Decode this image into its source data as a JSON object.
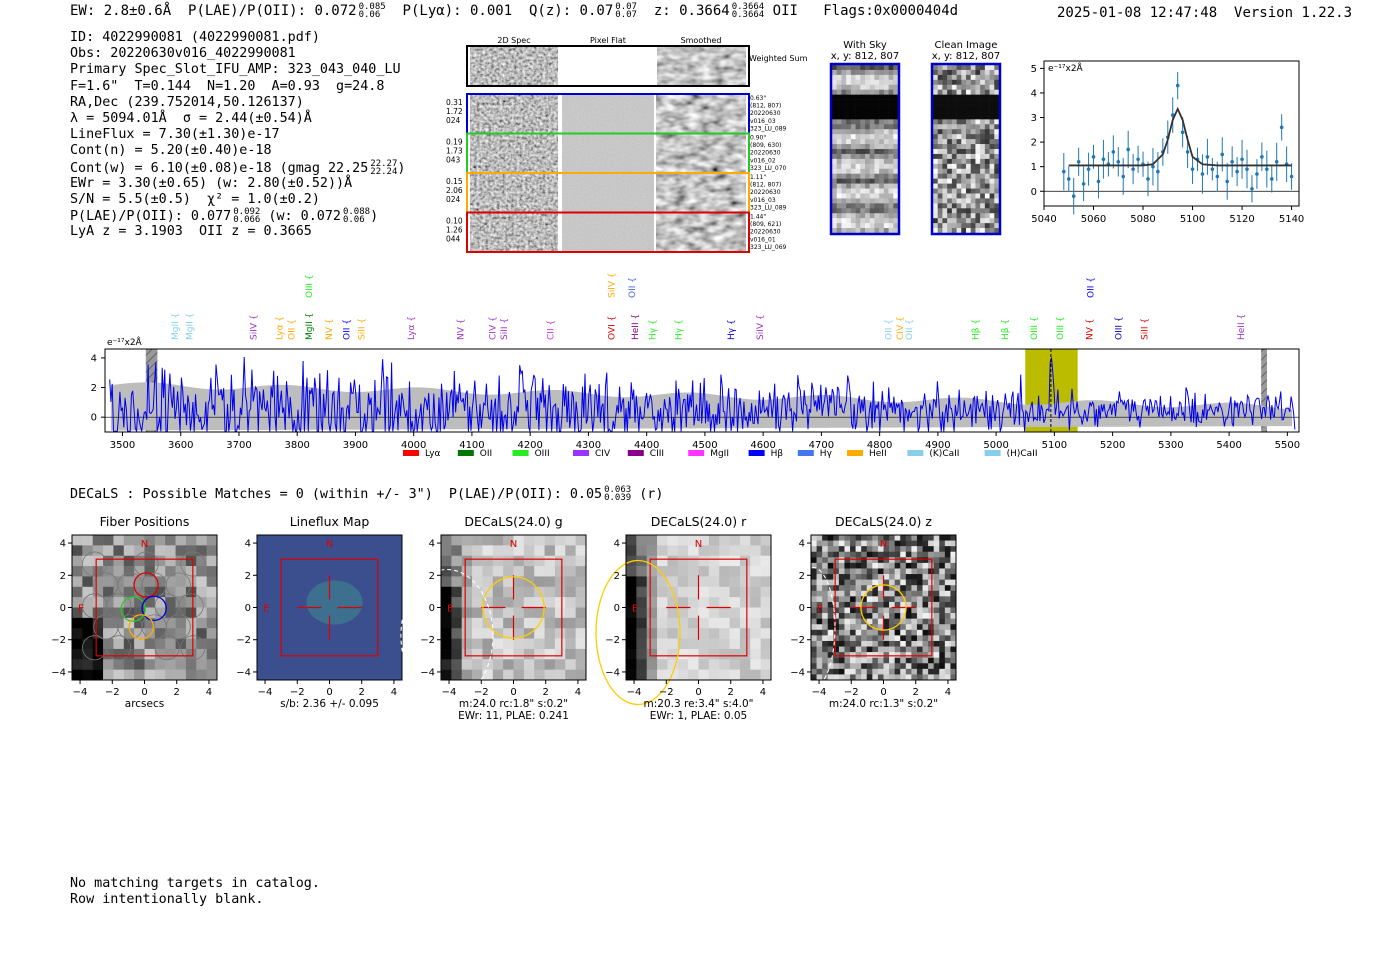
{
  "top": {
    "ew": "EW: 2.8±0.6Å",
    "plae": "P(LAE)/P(OII): 0.072",
    "plae_hi": "0.085",
    "plae_lo": "0.06",
    "plya": "P(Lyα): 0.001",
    "qz": "Q(z): 0.07",
    "qz_hi": "0.07",
    "qz_lo": "0.07",
    "z": "z: 0.3664",
    "z_hi": "0.3664",
    "z_lo": "0.3664",
    "z_line": "OII",
    "flags": "Flags:0x0000404d",
    "datetime": "2025-01-08 12:47:48",
    "version": "Version 1.22.3"
  },
  "info": {
    "id": "ID: 4022990081 (4022990081.pdf)",
    "obs": "Obs: 20220630v016_4022990081",
    "primary": "Primary Spec_Slot_IFU_AMP: 323_043_040_LU",
    "params": "F=1.6\"  T=0.144  N=1.20  A=0.93  g=24.8",
    "radec": "RA,Dec (239.752014,50.126137)",
    "lambda": "λ = 5094.01Å  σ = 2.44(±0.54)Å",
    "lineflux": "LineFlux = 7.30(±1.30)e-17",
    "contn": "Cont(n) = 5.20(±0.40)e-18",
    "contw": "Cont(w) = 6.10(±0.08)e-18 (gmag 22.25",
    "contw_hi": "22.27",
    "contw_lo": "22.24",
    "contw_end": ")",
    "ewr": "EWr = 3.30(±0.65) (w: 2.80(±0.52))Å",
    "sn": "S/N = 5.5(±0.5)  χ² = 1.0(±0.2)",
    "plae2": "P(LAE)/P(OII): 0.077",
    "plae2_hi": "0.092",
    "plae2_lo": "0.066",
    "plae2_w": "(w: 0.072",
    "plae2_w_hi": "0.088",
    "plae2_w_lo": "0.06",
    "plae2_end": ")",
    "lyaz": "LyA z = 3.1903  OII z = 0.3665"
  },
  "cutouts": {
    "col_labels": [
      "2D Spec",
      "Pixel Flat",
      "Smoothed"
    ],
    "weighted_sum": "Weighted Sum",
    "rows": [
      {
        "left": [
          "0.31",
          "1.72",
          "024"
        ],
        "right": [
          "0.63\"",
          "(812, 807)",
          "20220630",
          "v016_03",
          "323_LU_089"
        ],
        "color": "#0000cc"
      },
      {
        "left": [
          "0.19",
          "1.73",
          "043"
        ],
        "right": [
          "0.90\"",
          "(809, 630)",
          "20220630",
          "v016_02",
          "323_LU_070"
        ],
        "color": "#22cc22"
      },
      {
        "left": [
          "0.15",
          "2.06",
          "024"
        ],
        "right": [
          "1.11\"",
          "(812, 807)",
          "20220630",
          "v016_03",
          "323_LU_089"
        ],
        "color": "#ffaa00"
      },
      {
        "left": [
          "0.10",
          "1.26",
          "044"
        ],
        "right": [
          "1.44\"",
          "(809, 621)",
          "20220630",
          "v016_01",
          "323_LU_069"
        ],
        "color": "#dd0000"
      }
    ],
    "with_sky_title": "With Sky",
    "with_sky_xy": "x, y: 812, 807",
    "clean_title": "Clean Image",
    "clean_xy": "x, y: 812, 807"
  },
  "zoom_chart": {
    "unit_label": "e⁻¹⁷x2Å",
    "x_ticks": [
      5040,
      5060,
      5080,
      5100,
      5120,
      5140
    ],
    "y_ticks": [
      0,
      1,
      2,
      3,
      4,
      5
    ]
  },
  "spectrum": {
    "unit_label": "e⁻¹⁷x2Å",
    "x_ticks": [
      3500,
      3600,
      3700,
      3800,
      3900,
      4000,
      4100,
      4200,
      4300,
      4400,
      4500,
      4600,
      4700,
      4800,
      4900,
      5000,
      5100,
      5200,
      5300,
      5400,
      5500
    ],
    "y_ticks": [
      0,
      2,
      4
    ],
    "line_labels": [
      {
        "name": "MgII",
        "w": 3590,
        "color": "#87ceeb",
        "row": 0
      },
      {
        "name": "MgII",
        "w": 3615,
        "color": "#87ceeb",
        "row": 0
      },
      {
        "name": "SiIV",
        "w": 3725,
        "color": "#9933cc",
        "row": 0
      },
      {
        "name": "Lyα",
        "w": 3770,
        "color": "#ffaa00",
        "row": 0
      },
      {
        "name": "OII",
        "w": 3790,
        "color": "#ffaa00",
        "row": 0
      },
      {
        "name": "MgII",
        "w": 3820,
        "color": "#008000",
        "row": 0
      },
      {
        "name": "OIII",
        "w": 3820,
        "color": "#22ee22",
        "row": 1
      },
      {
        "name": "NV",
        "w": 3855,
        "color": "#ffaa00",
        "row": 0
      },
      {
        "name": "OII",
        "w": 3885,
        "color": "#0000ff",
        "row": 0
      },
      {
        "name": "SiII",
        "w": 3910,
        "color": "#ffaa00",
        "row": 0
      },
      {
        "name": "Lyα",
        "w": 3995,
        "color": "#9933cc",
        "row": 0
      },
      {
        "name": "NV",
        "w": 4080,
        "color": "#9933cc",
        "row": 0
      },
      {
        "name": "CIV",
        "w": 4135,
        "color": "#9933cc",
        "row": 0
      },
      {
        "name": "SiII",
        "w": 4155,
        "color": "#9933cc",
        "row": 0
      },
      {
        "name": "CII",
        "w": 4235,
        "color": "#cc33cc",
        "row": 0
      },
      {
        "name": "OVI",
        "w": 4340,
        "color": "#dd0000",
        "row": 0
      },
      {
        "name": "SiIV",
        "w": 4340,
        "color": "#ffaa00",
        "row": 1
      },
      {
        "name": "OII",
        "w": 4375,
        "color": "#4466dd",
        "row": 1
      },
      {
        "name": "HeII",
        "w": 4380,
        "color": "#880088",
        "row": 0
      },
      {
        "name": "Hγ",
        "w": 4410,
        "color": "#22ee22",
        "row": 0
      },
      {
        "name": "Hγ",
        "w": 4455,
        "color": "#22ee22",
        "row": 0
      },
      {
        "name": "Hγ",
        "w": 4545,
        "color": "#0000cc",
        "row": 0
      },
      {
        "name": "SiIV",
        "w": 4595,
        "color": "#9933cc",
        "row": 0
      },
      {
        "name": "OII",
        "w": 4815,
        "color": "#87ceeb",
        "row": 0
      },
      {
        "name": "CIV",
        "w": 4835,
        "color": "#ffaa00",
        "row": 0
      },
      {
        "name": "OII",
        "w": 4850,
        "color": "#87ceeb",
        "row": 0
      },
      {
        "name": "Hβ",
        "w": 4965,
        "color": "#22ee22",
        "row": 0
      },
      {
        "name": "Hβ",
        "w": 5015,
        "color": "#22ee22",
        "row": 0
      },
      {
        "name": "OIII",
        "w": 5065,
        "color": "#22ee22",
        "row": 0
      },
      {
        "name": "OIII",
        "w": 5110,
        "color": "#22ee22",
        "row": 0
      },
      {
        "name": "NV",
        "w": 5160,
        "color": "#dd0000",
        "row": 0
      },
      {
        "name": "OII",
        "w": 5162,
        "color": "#0000ff",
        "row": 1
      },
      {
        "name": "OIII",
        "w": 5210,
        "color": "#0000aa",
        "row": 0
      },
      {
        "name": "SiII",
        "w": 5255,
        "color": "#dd0000",
        "row": 0
      },
      {
        "name": "HeII",
        "w": 5420,
        "color": "#9933cc",
        "row": 0
      }
    ],
    "legend": [
      {
        "label": "Lyα",
        "color": "#ff0000"
      },
      {
        "label": "OII",
        "color": "#007700"
      },
      {
        "label": "OIII",
        "color": "#22ee22"
      },
      {
        "label": "CIV",
        "color": "#9933ff"
      },
      {
        "label": "CIII",
        "color": "#880088"
      },
      {
        "label": "MgII",
        "color": "#ff33ff"
      },
      {
        "label": "Hβ",
        "color": "#0000ff"
      },
      {
        "label": "Hγ",
        "color": "#4477ee"
      },
      {
        "label": "HeII",
        "color": "#ffaa00"
      },
      {
        "label": "(K)CaII",
        "color": "#87ceeb"
      },
      {
        "label": "(H)CaII",
        "color": "#87ceeb"
      }
    ]
  },
  "decals_header": {
    "text": "DECaLS : Possible Matches = 0 (within +/- 3\")  P(LAE)/P(OII): 0.05",
    "hi": "0.063",
    "lo": "0.039",
    "end": "(r)"
  },
  "panels": [
    {
      "title": "Fiber Positions",
      "cap1": "arcsecs",
      "cap2": ""
    },
    {
      "title": "Lineflux Map",
      "cap1": "s/b: 2.36 +/- 0.095",
      "cap2": ""
    },
    {
      "title": "DECaLS(24.0) g",
      "cap1": "m:24.0 rc:1.8\"  s:0.2\"",
      "cap2": "EWr: 11, PLAE: 0.241"
    },
    {
      "title": "DECaLS(24.0) r",
      "cap1": "m:20.3  re:3.4\"  s:4.0\"",
      "cap2": "EWr: 1, PLAE: 0.05"
    },
    {
      "title": "DECaLS(24.0) z",
      "cap1": "m:24.0 rc:1.3\"  s:0.2\"",
      "cap2": ""
    }
  ],
  "panel_ticks": [
    -4,
    -2,
    0,
    2,
    4
  ],
  "compass": {
    "n": "N",
    "e": "E"
  },
  "footnotes": {
    "line1": "No matching targets in catalog.",
    "line2": "Row intentionally blank."
  },
  "chart_data": [
    {
      "type": "scatter",
      "title": "",
      "xlabel": "",
      "ylabel": "e⁻¹⁷x2Å",
      "xlim": [
        5040,
        5143
      ],
      "ylim": [
        -0.6,
        5.3
      ],
      "series": [
        {
          "x": [
            5048,
            5050,
            5052,
            5054,
            5056,
            5058,
            5060,
            5062,
            5064,
            5066,
            5068,
            5070,
            5072,
            5074,
            5076,
            5078,
            5080,
            5082,
            5084,
            5086,
            5088,
            5090,
            5092,
            5094,
            5096,
            5098,
            5100,
            5102,
            5104,
            5106,
            5108,
            5110,
            5112,
            5114,
            5116,
            5118,
            5120,
            5122,
            5124,
            5126,
            5128,
            5130,
            5132,
            5134,
            5136,
            5138,
            5140
          ],
          "y": [
            0.8,
            0.5,
            -0.2,
            1.2,
            0.3,
            0.9,
            1.4,
            0.4,
            1.3,
            1.1,
            1.6,
            1.2,
            0.6,
            1.7,
            0.9,
            1.3,
            1.1,
            0.5,
            1.0,
            0.8,
            1.6,
            2.2,
            3.1,
            4.3,
            2.4,
            1.6,
            0.9,
            1.3,
            0.7,
            1.4,
            0.9,
            0.6,
            1.5,
            0.4,
            1.2,
            0.8,
            1.3,
            0.9,
            0.1,
            0.7,
            1.4,
            0.9,
            0.5,
            1.2,
            2.6,
            1.1,
            0.6
          ]
        },
        {
          "name": "",
          "x": [
            5050,
            5060,
            5070,
            5080,
            5084,
            5088,
            5090,
            5092,
            5094,
            5096,
            5098,
            5100,
            5104,
            5110,
            5120,
            5130,
            5140
          ],
          "y": [
            1.05,
            1.05,
            1.05,
            1.05,
            1.1,
            1.5,
            2.1,
            2.9,
            3.35,
            2.9,
            2.1,
            1.4,
            1.1,
            1.05,
            1.05,
            1.05,
            1.05
          ]
        }
      ]
    },
    {
      "type": "line",
      "title": "",
      "xlabel": "",
      "ylabel": "e⁻¹⁷x2Å",
      "xlim": [
        3470,
        5520
      ],
      "ylim": [
        -1.0,
        4.6
      ],
      "highlight_range": [
        5050,
        5140
      ],
      "masked_ranges": [
        [
          3540,
          3560
        ],
        [
          5455,
          5465
        ]
      ],
      "detection": 5094
    }
  ]
}
